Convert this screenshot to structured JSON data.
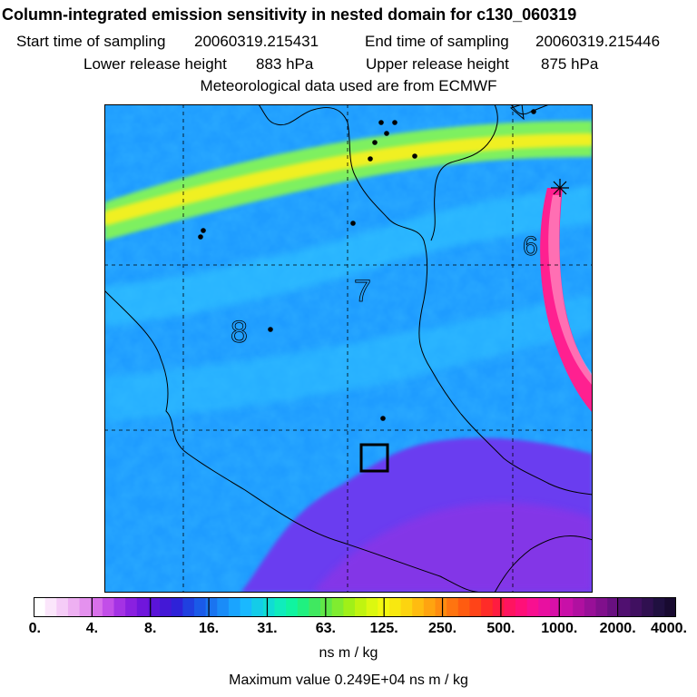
{
  "header": {
    "title": "Column-integrated emission sensitivity in nested domain for c130_060319",
    "start_label": "Start time of sampling",
    "start_value": "20060319.215431",
    "end_label": "End time of sampling",
    "end_value": "20060319.215446",
    "lower_label": "Lower release height",
    "lower_value": "883 hPa",
    "upper_label": "Upper release height",
    "upper_value": "875 hPa",
    "met_line": "Meteorological data used are from ECMWF"
  },
  "map": {
    "contour_labels": [
      "6",
      "7",
      "8"
    ],
    "colors": {
      "background": "#1e9cff",
      "low_region": "#7a3cf0",
      "band_outer": "#7ef060",
      "band_inner": "#f0f020",
      "plume_outer": "#ff2090",
      "plume_inner": "#ffd020",
      "border": "#000000",
      "grid": "#000000"
    }
  },
  "colorbar": {
    "tick_labels": [
      "0.",
      "4.",
      "8.",
      "16.",
      "31.",
      "63.",
      "125.",
      "250.",
      "500.",
      "1000.",
      "2000.",
      "4000."
    ],
    "colors": [
      "#ffffff",
      "#fbe6fb",
      "#f5ccf7",
      "#eeb0f2",
      "#e491ee",
      "#d870ea",
      "#c24ee8",
      "#a432e4",
      "#8a20e0",
      "#7016dc",
      "#5a14d8",
      "#4418d6",
      "#2e22d8",
      "#2040e0",
      "#1a5ae8",
      "#1a74f0",
      "#1a8cf8",
      "#1aa4ff",
      "#1ab8ff",
      "#14cce8",
      "#10dcd4",
      "#10ecbc",
      "#10f4a0",
      "#20f080",
      "#40e860",
      "#60e848",
      "#80ec30",
      "#a0f018",
      "#c0f410",
      "#dcf810",
      "#f4f810",
      "#f8e810",
      "#fcd410",
      "#ffbc10",
      "#ffa410",
      "#ff8c10",
      "#ff7410",
      "#ff5c10",
      "#ff4418",
      "#ff2c28",
      "#ff1c40",
      "#ff1460",
      "#ff1078",
      "#f81090",
      "#e810a0",
      "#d810a8",
      "#c810a8",
      "#b010a0",
      "#981098",
      "#80108c",
      "#681080",
      "#501070",
      "#401060",
      "#301050",
      "#201040",
      "#180a30"
    ],
    "units": "ns m / kg",
    "max_label": "Maximum value",
    "max_value": "0.249E+04 ns m / kg"
  }
}
